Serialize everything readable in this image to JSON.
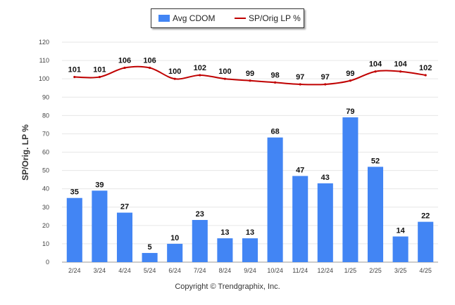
{
  "chart_data": {
    "type": "bar",
    "categories": [
      "2/24",
      "3/24",
      "4/24",
      "5/24",
      "6/24",
      "7/24",
      "8/24",
      "9/24",
      "10/24",
      "11/24",
      "12/24",
      "1/25",
      "2/25",
      "3/25",
      "4/25"
    ],
    "series": [
      {
        "name": "Avg CDOM",
        "type": "bar",
        "color": "#4285f4",
        "values": [
          35,
          39,
          27,
          5,
          10,
          23,
          13,
          13,
          68,
          47,
          43,
          79,
          52,
          14,
          22
        ]
      },
      {
        "name": "SP/Orig LP %",
        "type": "line",
        "color": "#c00000",
        "values": [
          101,
          101,
          106,
          106,
          100,
          102,
          100,
          99,
          98,
          97,
          97,
          99,
          104,
          104,
          102
        ]
      }
    ],
    "ylabel": "SP/Orig. LP %",
    "xlabel": "",
    "ylim": [
      0,
      120
    ],
    "yticks": [
      0,
      10,
      20,
      30,
      40,
      50,
      60,
      70,
      80,
      90,
      100,
      110,
      120
    ],
    "grid": true,
    "legend_placement": "top-center",
    "data_labels": true
  },
  "footer": {
    "copyright": "Copyright © Trendgraphix, Inc."
  }
}
